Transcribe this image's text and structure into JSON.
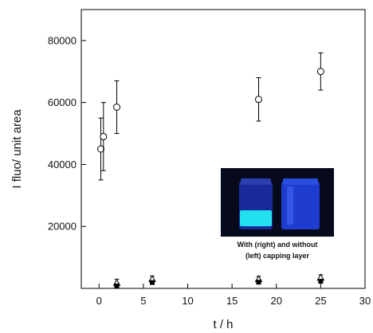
{
  "chart_data": {
    "type": "scatter",
    "xlabel": "t / h",
    "ylabel": "I fluo/ unit area",
    "xlim": [
      -2,
      30
    ],
    "ylim": [
      0,
      90000
    ],
    "xticks": [
      0,
      5,
      10,
      15,
      20,
      25,
      30
    ],
    "yticks": [
      20000,
      40000,
      60000,
      80000
    ],
    "grid": false,
    "series": [
      {
        "marker": "open-circle",
        "points": [
          {
            "x": 0.2,
            "y": 45000,
            "err": 10000
          },
          {
            "x": 0.5,
            "y": 49000,
            "err": 11000
          },
          {
            "x": 2,
            "y": 58500,
            "err": 8500
          },
          {
            "x": 18,
            "y": 61000,
            "err": 7000
          },
          {
            "x": 25,
            "y": 70000,
            "err": 6000
          }
        ]
      },
      {
        "marker": "open-triangle",
        "points": [
          {
            "x": 2,
            "y": 1800,
            "err": 1200
          },
          {
            "x": 6,
            "y": 3000,
            "err": 1000
          },
          {
            "x": 18,
            "y": 3000,
            "err": 900
          },
          {
            "x": 25,
            "y": 3500,
            "err": 900
          }
        ]
      },
      {
        "marker": "filled-square",
        "points": [
          {
            "x": 2,
            "y": 800
          },
          {
            "x": 6,
            "y": 1900
          },
          {
            "x": 18,
            "y": 2000
          },
          {
            "x": 25,
            "y": 2300
          }
        ]
      }
    ],
    "inset": {
      "caption_lines": [
        "With (right) and without",
        "(left) capping layer"
      ]
    }
  }
}
